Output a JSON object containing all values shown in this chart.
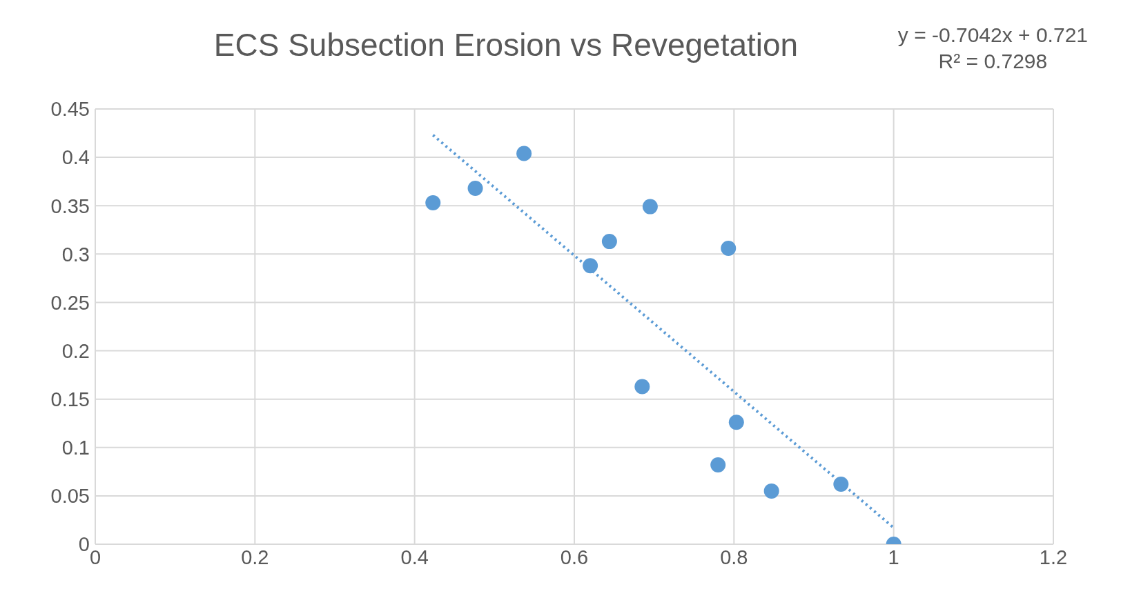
{
  "chart_data": {
    "type": "scatter",
    "title": "ECS Subsection Erosion vs Revegetation",
    "annotations": [
      "y = -0.7042x + 0.721",
      "R² = 0.7298"
    ],
    "series": [
      {
        "color": "#5b9bd5",
        "marker": "circle",
        "x": [
          0.423,
          0.476,
          0.537,
          0.62,
          0.644,
          0.695,
          0.793,
          0.685,
          0.803,
          0.78,
          0.847,
          0.934,
          1.0
        ],
        "values": [
          0.353,
          0.368,
          0.404,
          0.288,
          0.313,
          0.349,
          0.306,
          0.163,
          0.126,
          0.082,
          0.055,
          0.062,
          0
        ]
      },
      {
        "type": "line",
        "color": "#5b9bd5",
        "line_style": "dotted",
        "marker": "none",
        "x": [
          0.423,
          1.0
        ],
        "values": [
          0.423,
          0.017
        ]
      }
    ],
    "xlim": [
      0,
      1.2
    ],
    "xticks": [
      0,
      0.2,
      0.4,
      0.6,
      0.8,
      1,
      1.2
    ],
    "ylim": [
      0,
      0.45
    ],
    "yticks": [
      0,
      0.05,
      0.1,
      0.15,
      0.2,
      0.25,
      0.3,
      0.35,
      0.4,
      0.45
    ],
    "grid": true
  }
}
